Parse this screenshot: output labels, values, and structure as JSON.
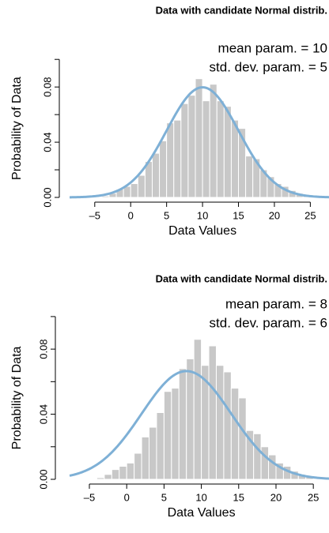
{
  "chart_data": [
    {
      "type": "histogram",
      "title": "Data with candidate Normal distrib.",
      "x_label": "Data Values",
      "y_label": "Probability of Data",
      "bins": [
        -4,
        -3,
        -2,
        -1,
        0,
        1,
        2,
        3,
        4,
        5,
        6,
        7,
        8,
        9,
        10,
        11,
        12,
        13,
        14,
        15,
        16,
        17,
        18,
        19,
        20,
        21,
        22,
        23,
        24,
        25
      ],
      "values": [
        0.001,
        0.003,
        0.006,
        0.008,
        0.01,
        0.016,
        0.026,
        0.032,
        0.041,
        0.054,
        0.056,
        0.068,
        0.074,
        0.086,
        0.07,
        0.082,
        0.07,
        0.066,
        0.056,
        0.05,
        0.03,
        0.028,
        0.02,
        0.015,
        0.01,
        0.008,
        0.005,
        0.003,
        0.002
      ],
      "color": "#c8c8c8",
      "curve_color": "#7eb0d6",
      "mean": {
        "value": 10,
        "label": "mean param. = 10"
      },
      "sd": {
        "value": 5,
        "label": "std. dev. param. = 5"
      },
      "xlim": [
        -8.5,
        27.6
      ],
      "ylim": [
        0,
        0.115
      ],
      "xticks": [
        {
          "value": -5,
          "label": "–5"
        },
        0,
        5,
        10,
        15,
        20,
        25
      ],
      "yticks": [
        {
          "value": 0,
          "label": "0.00"
        },
        {
          "value": 0.04,
          "label": "0.04"
        },
        {
          "value": 0.08,
          "label": "0.08"
        }
      ],
      "yminor": [
        0.02,
        0.06,
        0.1
      ]
    },
    {
      "type": "histogram",
      "title": "Data with candidate Normal distrib.",
      "x_label": "Data Values",
      "y_label": "Probability of Data",
      "bins": [
        -4,
        -3,
        -2,
        -1,
        0,
        1,
        2,
        3,
        4,
        5,
        6,
        7,
        8,
        9,
        10,
        11,
        12,
        13,
        14,
        15,
        16,
        17,
        18,
        19,
        20,
        21,
        22,
        23,
        24,
        25
      ],
      "values": [
        0.001,
        0.003,
        0.006,
        0.008,
        0.01,
        0.016,
        0.026,
        0.032,
        0.041,
        0.054,
        0.056,
        0.068,
        0.074,
        0.086,
        0.07,
        0.082,
        0.07,
        0.066,
        0.056,
        0.05,
        0.03,
        0.028,
        0.02,
        0.015,
        0.01,
        0.008,
        0.005,
        0.003,
        0.002
      ],
      "color": "#c8c8c8",
      "curve_color": "#7eb0d6",
      "mean": {
        "value": 8,
        "label": "mean param. = 8"
      },
      "sd": {
        "value": 6,
        "label": "std. dev. param. = 6"
      },
      "xlim": [
        -7.65,
        27.1
      ],
      "ylim": [
        0,
        0.115
      ],
      "xticks": [
        {
          "value": -5,
          "label": "–5"
        },
        0,
        5,
        10,
        15,
        20,
        25
      ],
      "yticks": [
        {
          "value": 0,
          "label": "0.00"
        },
        {
          "value": 0.04,
          "label": "0.04"
        },
        {
          "value": 0.08,
          "label": "0.08"
        }
      ],
      "yminor": [
        0.02,
        0.06,
        0.1
      ]
    }
  ]
}
